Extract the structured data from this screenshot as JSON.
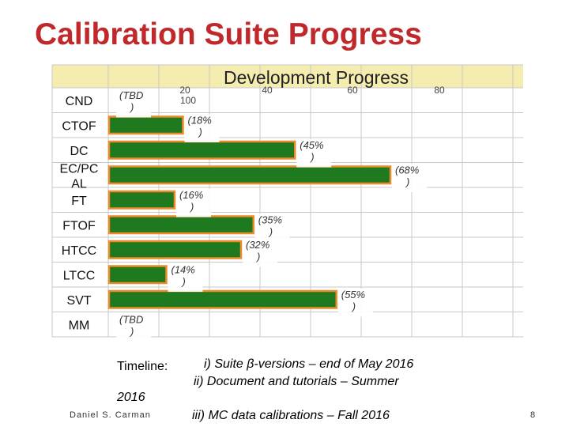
{
  "slide": {
    "title": "Calibration Suite Progress",
    "author": "Daniel S. Carman",
    "page_number": "8",
    "timeline": {
      "label": "Timeline:",
      "item1": "i) Suite β-versions – end of May 2016",
      "item2": "ii) Document and tutorials – Summer",
      "item2_cont": "2016",
      "item3": "iii) MC data calibrations – Fall 2016"
    }
  },
  "colors": {
    "accent": "#c0292b",
    "bar_fill": "#1f7a1f",
    "bar_border": "#ee8a2a",
    "header_fill": "#f5ecb0",
    "grid": "#c8c8c8"
  },
  "chart_data": {
    "type": "bar",
    "orientation": "horizontal",
    "title": "Development Progress",
    "xlim": [
      0,
      100
    ],
    "tick_labels": [
      "20",
      "40",
      "60",
      "80",
      "100"
    ],
    "grid": true,
    "categories": [
      "CND",
      "CTOF",
      "DC",
      "EC/PCAL",
      "FT",
      "FTOF",
      "HTCC",
      "LTCC",
      "SVT",
      "MM"
    ],
    "category_display": [
      "CND",
      "CTOF",
      "DC",
      "EC/PC\nAL",
      "FT",
      "FTOF",
      "HTCC",
      "LTCC",
      "SVT",
      "MM"
    ],
    "values": [
      0,
      18,
      45,
      68,
      16,
      35,
      32,
      14,
      55,
      0
    ],
    "data_labels": [
      "(TBD\n)",
      "(18%\n)",
      "(45%\n)",
      "(68%\n)",
      "(16%\n)",
      "(35%\n)",
      "(32%\n)",
      "(14%\n)",
      "(55%\n)",
      "(TBD\n)"
    ]
  }
}
